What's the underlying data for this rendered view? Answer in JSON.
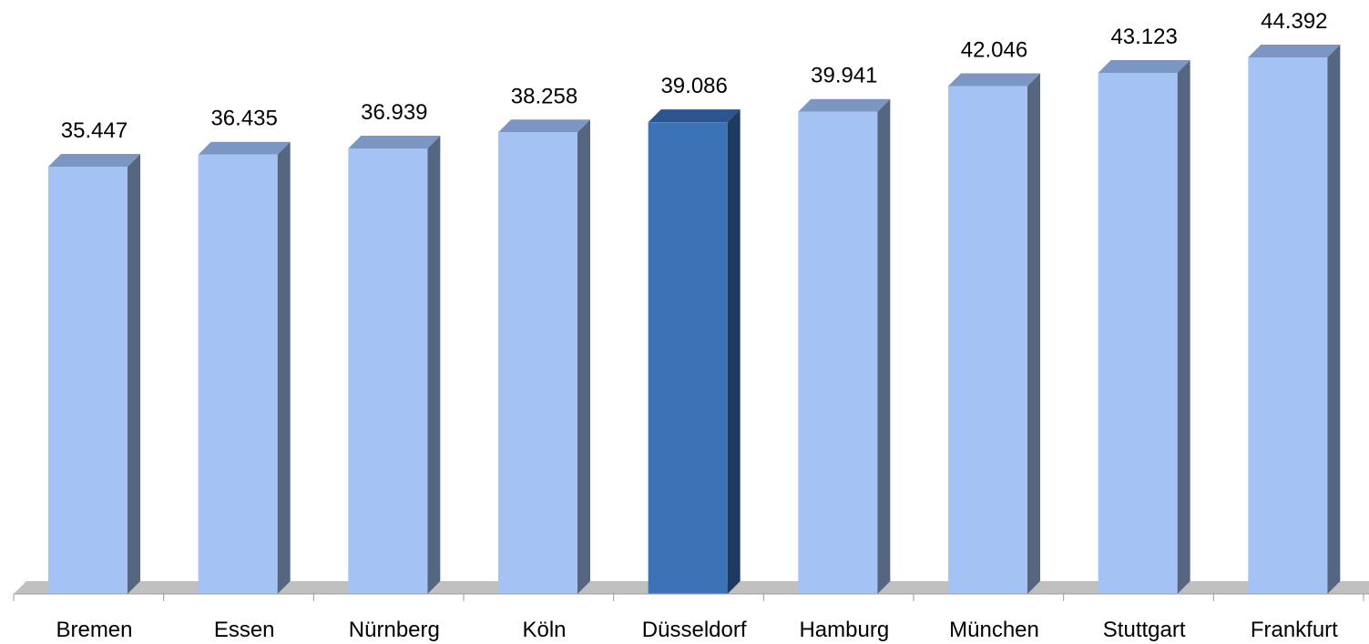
{
  "chart_data": {
    "type": "bar",
    "categories": [
      "Bremen",
      "Essen",
      "Nürnberg",
      "Köln",
      "Düsseldorf",
      "Hamburg",
      "München",
      "Stuttgart",
      "Frankfurt"
    ],
    "values": [
      35447,
      36435,
      36939,
      38258,
      39086,
      39941,
      42046,
      43123,
      44392
    ],
    "value_labels": [
      "35.447",
      "36.435",
      "36.939",
      "38.258",
      "39.086",
      "39.941",
      "42.046",
      "43.123",
      "44.392"
    ],
    "highlight": "Düsseldorf",
    "ylim": [
      0,
      44392
    ],
    "grid": false,
    "legend": "none",
    "title": "",
    "xlabel": "",
    "ylabel": "",
    "colors": {
      "bar_front": "#a4c3f4",
      "bar_top": "#7c96c4",
      "bar_side": "#566680",
      "highlight_front": "#3c73b7",
      "highlight_top": "#2c5590",
      "highlight_side": "#1f3a5f",
      "floor": "#c0c0c0",
      "axis": "#9a9a9a"
    }
  }
}
